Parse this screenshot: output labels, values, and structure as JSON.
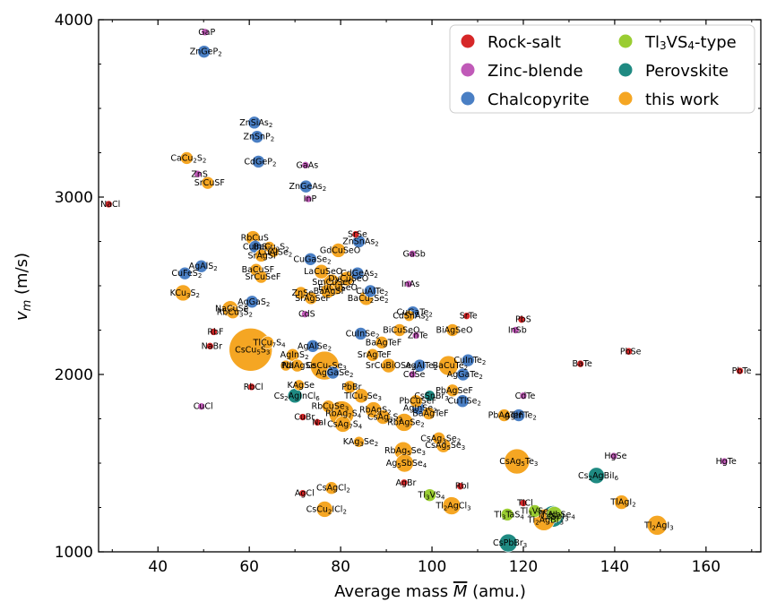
{
  "chart_data": {
    "type": "scatter",
    "xlabel": "Average mass M̅ (amu.)",
    "ylabel": "v_m (m/s)",
    "xlim": [
      27,
      172
    ],
    "ylim": [
      1000,
      4000
    ],
    "x_ticks": [
      40,
      60,
      80,
      100,
      120,
      140,
      160
    ],
    "y_ticks": [
      1000,
      2000,
      3000,
      4000
    ],
    "legend_position": "top-right",
    "series": [
      {
        "name": "Rock-salt",
        "color": "#d62728",
        "points": [
          {
            "label": "NaCl",
            "x": 29.2,
            "y": 2960,
            "size": 4
          },
          {
            "label": "SrSe",
            "x": 83.3,
            "y": 2790,
            "size": 4
          },
          {
            "label": "SrTe",
            "x": 107.6,
            "y": 2330,
            "size": 4
          },
          {
            "label": "PbS",
            "x": 119.6,
            "y": 2310,
            "size": 4
          },
          {
            "label": "RbF",
            "x": 52.2,
            "y": 2240,
            "size": 4
          },
          {
            "label": "NaBr",
            "x": 51.4,
            "y": 2160,
            "size": 4
          },
          {
            "label": "PbSe",
            "x": 143.1,
            "y": 2130,
            "size": 4
          },
          {
            "label": "BaTe",
            "x": 132.5,
            "y": 2060,
            "size": 4
          },
          {
            "label": "PbTe",
            "x": 167.4,
            "y": 2020,
            "size": 4
          },
          {
            "label": "RbCl",
            "x": 60.5,
            "y": 1930,
            "size": 4
          },
          {
            "label": "CuBr",
            "x": 71.7,
            "y": 1760,
            "size": 4
          },
          {
            "label": "NaI",
            "x": 74.9,
            "y": 1730,
            "size": 4
          },
          {
            "label": "AgBr",
            "x": 93.9,
            "y": 1390,
            "size": 4
          },
          {
            "label": "RbI",
            "x": 106.2,
            "y": 1370,
            "size": 4
          },
          {
            "label": "AgCl",
            "x": 71.7,
            "y": 1330,
            "size": 4
          },
          {
            "label": "TlCl",
            "x": 120,
            "y": 1275,
            "size": 4
          }
        ]
      },
      {
        "name": "Zinc-blende",
        "color": "#c05ab8",
        "points": [
          {
            "label": "GaP",
            "x": 50.3,
            "y": 3930,
            "size": 4
          },
          {
            "label": "ZnS",
            "x": 48.7,
            "y": 3130,
            "size": 4
          },
          {
            "label": "GaAs",
            "x": 72.3,
            "y": 3180,
            "size": 4
          },
          {
            "label": "InP",
            "x": 72.9,
            "y": 2990,
            "size": 4
          },
          {
            "label": "GaSb",
            "x": 95.7,
            "y": 2680,
            "size": 4
          },
          {
            "label": "InAs",
            "x": 94.9,
            "y": 2510,
            "size": 4
          },
          {
            "label": "CdS",
            "x": 72.2,
            "y": 2340,
            "size": 4
          },
          {
            "label": "InSb",
            "x": 118.3,
            "y": 2250,
            "size": 4
          },
          {
            "label": "ZnTe",
            "x": 96.5,
            "y": 2220,
            "size": 4
          },
          {
            "label": "CuCl",
            "x": 49.5,
            "y": 1820,
            "size": 4
          },
          {
            "label": "CdSe",
            "x": 95.7,
            "y": 2000,
            "size": 4
          },
          {
            "label": "CdTe",
            "x": 120,
            "y": 1880,
            "size": 4
          },
          {
            "label": "HgSe",
            "x": 139.8,
            "y": 1540,
            "size": 4
          },
          {
            "label": "HgTe",
            "x": 164,
            "y": 1510,
            "size": 4
          }
        ]
      },
      {
        "name": "Chalcopyrite",
        "color": "#4a7fc4",
        "points": [
          {
            "label": "ZnGeP2",
            "x": 50.1,
            "y": 3820,
            "size": 7
          },
          {
            "label": "ZnSiAs2",
            "x": 61.1,
            "y": 3420,
            "size": 7
          },
          {
            "label": "ZnSnP2",
            "x": 61.7,
            "y": 3340,
            "size": 7
          },
          {
            "label": "CdGeP2",
            "x": 62,
            "y": 3200,
            "size": 7
          },
          {
            "label": "ZnGeAs2",
            "x": 72.4,
            "y": 3060,
            "size": 7
          },
          {
            "label": "ZnSnAs2",
            "x": 84,
            "y": 2750,
            "size": 7
          },
          {
            "label": "AgAlS2",
            "x": 49.5,
            "y": 2610,
            "size": 7
          },
          {
            "label": "CuFeS2",
            "x": 45.9,
            "y": 2570,
            "size": 7
          },
          {
            "label": "CuInS2",
            "x": 61.3,
            "y": 2720,
            "size": 7
          },
          {
            "label": "CuGaSe2",
            "x": 73.4,
            "y": 2650,
            "size": 7
          },
          {
            "label": "CdGeAs2",
            "x": 83.7,
            "y": 2570,
            "size": 7
          },
          {
            "label": "AgGaS2",
            "x": 60.6,
            "y": 2410,
            "size": 7
          },
          {
            "label": "CuAlTe2",
            "x": 86.5,
            "y": 2470,
            "size": 7
          },
          {
            "label": "CuGaTe2",
            "x": 95.8,
            "y": 2350,
            "size": 7
          },
          {
            "label": "CuInSe2",
            "x": 84.4,
            "y": 2230,
            "size": 7
          },
          {
            "label": "AgAlSe2",
            "x": 73.9,
            "y": 2160,
            "size": 7
          },
          {
            "label": "AgAlTe2",
            "x": 97.3,
            "y": 2050,
            "size": 7
          },
          {
            "label": "AgGaSe2",
            "x": 78.3,
            "y": 2010,
            "size": 7
          },
          {
            "label": "CuInTe2",
            "x": 107.9,
            "y": 2080,
            "size": 7
          },
          {
            "label": "AgGaTe2",
            "x": 106.8,
            "y": 2000,
            "size": 7
          },
          {
            "label": "AgInSe2",
            "x": 97,
            "y": 1810,
            "size": 7
          },
          {
            "label": "CuTlSe2",
            "x": 106.7,
            "y": 1850,
            "size": 7
          },
          {
            "label": "AgInTe2",
            "x": 119,
            "y": 1770,
            "size": 7
          }
        ]
      },
      {
        "name": "Tl3VS4-type",
        "color": "#9acd32",
        "points": [
          {
            "label": "Tl3VS4",
            "x": 99.5,
            "y": 1320,
            "size": 7
          },
          {
            "label": "Tl3TaS4",
            "x": 116.5,
            "y": 1210,
            "size": 7
          },
          {
            "label": "Tl3VSe4",
            "x": 122.5,
            "y": 1230,
            "size": 7
          },
          {
            "label": "Tl3NbSe4",
            "x": 126.8,
            "y": 1210,
            "size": 9
          }
        ]
      },
      {
        "name": "Perovskite",
        "color": "#1f8a82",
        "points": [
          {
            "label": "Cs2AgInCl6",
            "x": 70,
            "y": 1880,
            "size": 8
          },
          {
            "label": "CsSnBr3",
            "x": 99.5,
            "y": 1880,
            "size": 6
          },
          {
            "label": "Cs2AgBiI6",
            "x": 136,
            "y": 1430,
            "size": 9
          },
          {
            "label": "CsSnI3",
            "x": 126.5,
            "y": 1200,
            "size": 12
          },
          {
            "label": "CsPbBr3",
            "x": 116.7,
            "y": 1050,
            "size": 10
          }
        ]
      },
      {
        "name": "this work",
        "color": "#f5a623",
        "points": [
          {
            "label": "CaCu2S2",
            "x": 46.3,
            "y": 3220,
            "size": 7
          },
          {
            "label": "SrCuSF",
            "x": 50.9,
            "y": 3080,
            "size": 7
          },
          {
            "label": "RbCuS",
            "x": 60.8,
            "y": 2770,
            "size": 8
          },
          {
            "label": "BaCu2S2",
            "x": 64.4,
            "y": 2720,
            "size": 6
          },
          {
            "label": "SrAgSF",
            "x": 62.6,
            "y": 2670,
            "size": 7
          },
          {
            "label": "CuAlSe2",
            "x": 65.3,
            "y": 2690,
            "size": 6
          },
          {
            "label": "GdCuSeO",
            "x": 79.5,
            "y": 2700,
            "size": 8
          },
          {
            "label": "BaCuSF",
            "x": 61.5,
            "y": 2590,
            "size": 7
          },
          {
            "label": "SrCuSeF",
            "x": 62.6,
            "y": 2550,
            "size": 7
          },
          {
            "label": "LaCuSeO",
            "x": 75.8,
            "y": 2580,
            "size": 8
          },
          {
            "label": "SmCuSeO",
            "x": 78,
            "y": 2520,
            "size": 9
          },
          {
            "label": "DyCuSeO",
            "x": 81.3,
            "y": 2540,
            "size": 8
          },
          {
            "label": "EuCuSeO",
            "x": 79,
            "y": 2490,
            "size": 8
          },
          {
            "label": "KCu3S2",
            "x": 45.5,
            "y": 2460,
            "size": 9
          },
          {
            "label": "ZnSe",
            "x": 71.3,
            "y": 2460,
            "size": 7
          },
          {
            "label": "BaAgSF",
            "x": 77.2,
            "y": 2470,
            "size": 8
          },
          {
            "label": "SrAgSeF",
            "x": 73.5,
            "y": 2430,
            "size": 7
          },
          {
            "label": "BaCu2Se2",
            "x": 85.6,
            "y": 2430,
            "size": 8
          },
          {
            "label": "NaCuSe",
            "x": 55.8,
            "y": 2370,
            "size": 9
          },
          {
            "label": "RbCu3S2",
            "x": 56.4,
            "y": 2350,
            "size": 7
          },
          {
            "label": "CdSnAs2",
            "x": 95,
            "y": 2330,
            "size": 6
          },
          {
            "label": "BiCuSeO",
            "x": 92.9,
            "y": 2250,
            "size": 7
          },
          {
            "label": "BiAgSeO",
            "x": 104.5,
            "y": 2250,
            "size": 7
          },
          {
            "label": "TlCu7S4",
            "x": 64,
            "y": 2180,
            "size": 7
          },
          {
            "label": "BaAgTeF",
            "x": 89,
            "y": 2180,
            "size": 7
          },
          {
            "label": "CsCu5S3",
            "x": 60.3,
            "y": 2140,
            "size": 24
          },
          {
            "label": "AgInS2",
            "x": 69.5,
            "y": 2110,
            "size": 7
          },
          {
            "label": "SrAgTeF",
            "x": 87,
            "y": 2110,
            "size": 7
          },
          {
            "label": "CsCu5Se3",
            "x": 76.5,
            "y": 2050,
            "size": 16
          },
          {
            "label": "PdI",
            "x": 68,
            "y": 2050,
            "size": 6
          },
          {
            "label": "NaAgSe",
            "x": 70.5,
            "y": 2050,
            "size": 7
          },
          {
            "label": "SrCuBiOSe2",
            "x": 90.5,
            "y": 2050,
            "size": 8
          },
          {
            "label": "BaCuTe2",
            "x": 103.6,
            "y": 2050,
            "size": 11
          },
          {
            "label": "KAgSe",
            "x": 70.9,
            "y": 1940,
            "size": 6
          },
          {
            "label": "PbBr",
            "x": 82,
            "y": 1930,
            "size": 7
          },
          {
            "label": "TlCu3Se3",
            "x": 84.5,
            "y": 1880,
            "size": 8
          },
          {
            "label": "PbAgSeF",
            "x": 104.5,
            "y": 1910,
            "size": 7
          },
          {
            "label": "PbCuSeF",
            "x": 96.5,
            "y": 1850,
            "size": 7
          },
          {
            "label": "RbCuSe3",
            "x": 77.3,
            "y": 1820,
            "size": 7
          },
          {
            "label": "RbAgS2",
            "x": 87.2,
            "y": 1800,
            "size": 9
          },
          {
            "label": "RbAg7S4",
            "x": 80.2,
            "y": 1780,
            "size": 14
          },
          {
            "label": "CsAg3S2",
            "x": 89.3,
            "y": 1760,
            "size": 8
          },
          {
            "label": "BaAgTeF",
            "x": 99.3,
            "y": 1780,
            "size": 7
          },
          {
            "label": "PbAgTeF",
            "x": 115.8,
            "y": 1770,
            "size": 7
          },
          {
            "label": "RbAgSe2",
            "x": 93.9,
            "y": 1730,
            "size": 10
          },
          {
            "label": "CsAg7S4",
            "x": 80.5,
            "y": 1720,
            "size": 9
          },
          {
            "label": "CsAg3Se2",
            "x": 101.5,
            "y": 1640,
            "size": 7
          },
          {
            "label": "KAg3Se2",
            "x": 84,
            "y": 1620,
            "size": 6
          },
          {
            "label": "CsAg5Se3",
            "x": 102.5,
            "y": 1600,
            "size": 8
          },
          {
            "label": "RbAg5Se3",
            "x": 93.7,
            "y": 1570,
            "size": 10
          },
          {
            "label": "Ag5SbSe4",
            "x": 94,
            "y": 1500,
            "size": 10
          },
          {
            "label": "CsAg5Te3",
            "x": 118.6,
            "y": 1510,
            "size": 14
          },
          {
            "label": "CsAgCl2",
            "x": 78,
            "y": 1360,
            "size": 7
          },
          {
            "label": "CsCu2ICl2",
            "x": 76.5,
            "y": 1240,
            "size": 9
          },
          {
            "label": "Tl2AgCl3",
            "x": 104.3,
            "y": 1260,
            "size": 10
          },
          {
            "label": "TlAgI2",
            "x": 141.5,
            "y": 1280,
            "size": 8
          },
          {
            "label": "Tl2AgBr3",
            "x": 124.5,
            "y": 1180,
            "size": 12
          },
          {
            "label": "Tl2AgI3",
            "x": 149.3,
            "y": 1150,
            "size": 11
          }
        ]
      }
    ],
    "legend": [
      {
        "name": "Rock-salt",
        "color": "#d62728",
        "column": 0,
        "row": 0
      },
      {
        "name": "Zinc-blende",
        "color": "#c05ab8",
        "column": 0,
        "row": 1
      },
      {
        "name": "Chalcopyrite",
        "color": "#4a7fc4",
        "column": 0,
        "row": 2
      },
      {
        "name": "Tl3VS4-type",
        "color": "#9acd32",
        "column": 1,
        "row": 0
      },
      {
        "name": "Perovskite",
        "color": "#1f8a82",
        "column": 1,
        "row": 1
      },
      {
        "name": "this work",
        "color": "#f5a623",
        "column": 1,
        "row": 2
      }
    ]
  }
}
